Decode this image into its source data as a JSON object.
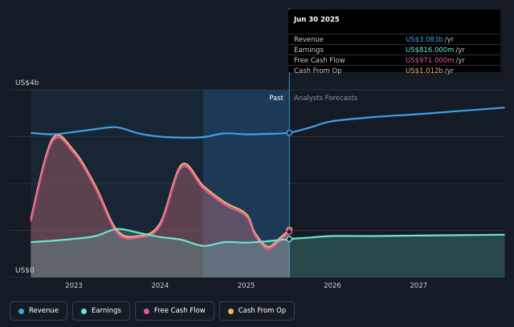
{
  "tooltip": {
    "date": "Jun 30 2025",
    "rows": [
      {
        "label": "Revenue",
        "value": "US$3.083b",
        "unit": "/yr",
        "color": "#3ea0ea"
      },
      {
        "label": "Earnings",
        "value": "US$816.000m",
        "unit": "/yr",
        "color": "#6fe3d3"
      },
      {
        "label": "Free Cash Flow",
        "value": "US$971.000m",
        "unit": "/yr",
        "color": "#e05a9a"
      },
      {
        "label": "Cash From Op",
        "value": "US$1.012b",
        "unit": "/yr",
        "color": "#f4b266"
      }
    ]
  },
  "legend": [
    {
      "label": "Revenue",
      "color": "#3ea0ea"
    },
    {
      "label": "Earnings",
      "color": "#6fe3d3"
    },
    {
      "label": "Free Cash Flow",
      "color": "#e05a9a"
    },
    {
      "label": "Cash From Op",
      "color": "#f4b266"
    }
  ],
  "chart_data": {
    "type": "line",
    "ylabel_top": "US$4b",
    "ylabel_bottom": "US$0",
    "ylim": [
      0,
      4
    ],
    "xlim": [
      2022.5,
      2028.0
    ],
    "x_ticks": [
      {
        "value": 2023,
        "label": "2023"
      },
      {
        "value": 2024,
        "label": "2024"
      },
      {
        "value": 2025,
        "label": "2025"
      },
      {
        "value": 2026,
        "label": "2026"
      },
      {
        "value": 2027,
        "label": "2027"
      }
    ],
    "past_label": "Past",
    "forecast_label": "Analysts Forecasts",
    "divider_x": 2025.5,
    "shaded_start_x": 2024.5,
    "series": [
      {
        "name": "Revenue",
        "color": "#3ea0ea",
        "x": [
          2022.5,
          2022.75,
          2023.0,
          2023.25,
          2023.5,
          2023.75,
          2024.0,
          2024.25,
          2024.5,
          2024.75,
          2025.0,
          2025.25,
          2025.5,
          2025.75,
          2026.0,
          2026.5,
          2027.0,
          2027.5,
          2028.0
        ],
        "y": [
          3.08,
          3.05,
          3.1,
          3.16,
          3.2,
          3.07,
          3.0,
          2.98,
          2.99,
          3.07,
          3.05,
          3.06,
          3.083,
          3.2,
          3.33,
          3.42,
          3.48,
          3.55,
          3.62
        ]
      },
      {
        "name": "Earnings",
        "color": "#6fe3d3",
        "x": [
          2022.5,
          2022.75,
          2023.0,
          2023.25,
          2023.5,
          2023.75,
          2024.0,
          2024.25,
          2024.5,
          2024.75,
          2025.0,
          2025.25,
          2025.5,
          2025.75,
          2026.0,
          2026.5,
          2027.0,
          2027.5,
          2028.0
        ],
        "y": [
          0.75,
          0.78,
          0.82,
          0.88,
          1.03,
          0.95,
          0.86,
          0.8,
          0.67,
          0.75,
          0.74,
          0.77,
          0.816,
          0.85,
          0.88,
          0.88,
          0.89,
          0.9,
          0.91
        ]
      },
      {
        "name": "Free Cash Flow",
        "color": "#e05a9a",
        "x": [
          2022.5,
          2022.75,
          2023.0,
          2023.25,
          2023.5,
          2023.75,
          2024.0,
          2024.25,
          2024.5,
          2024.75,
          2025.0,
          2025.1,
          2025.25,
          2025.4,
          2025.5
        ],
        "y": [
          1.2,
          2.9,
          2.65,
          1.9,
          0.95,
          0.85,
          1.1,
          2.35,
          1.9,
          1.55,
          1.3,
          0.9,
          0.6,
          0.8,
          0.971
        ]
      },
      {
        "name": "Cash From Op",
        "color": "#f4b266",
        "x": [
          2022.5,
          2022.75,
          2023.0,
          2023.25,
          2023.5,
          2023.75,
          2024.0,
          2024.25,
          2024.5,
          2024.75,
          2025.0,
          2025.1,
          2025.25,
          2025.4,
          2025.5
        ],
        "y": [
          1.25,
          2.95,
          2.7,
          1.95,
          1.0,
          0.88,
          1.15,
          2.4,
          1.95,
          1.6,
          1.35,
          0.95,
          0.65,
          0.85,
          1.012
        ]
      }
    ]
  }
}
